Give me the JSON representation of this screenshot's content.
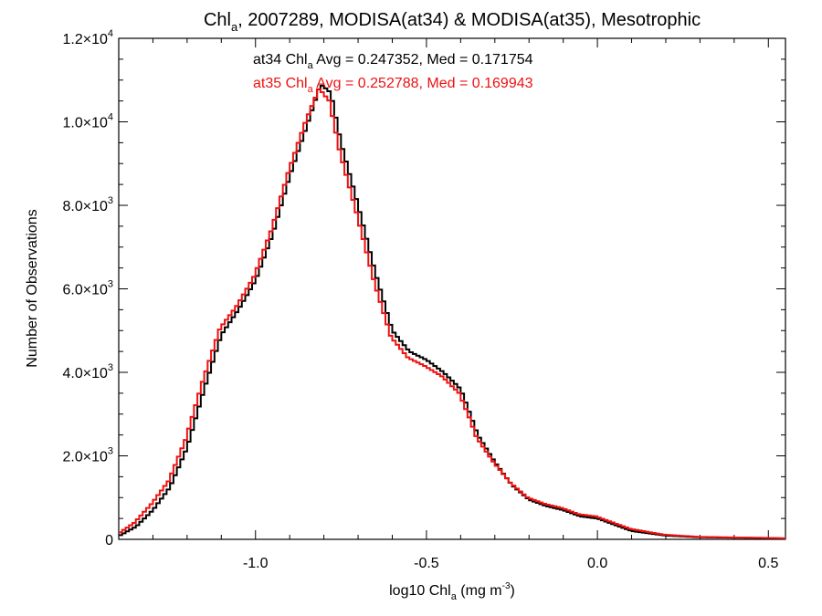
{
  "chart_data": {
    "type": "line",
    "title": {
      "main": "Chl",
      "sub": "a",
      "rest": ", 2007289, MODISA(at34) & MODISA(at35), Mesotrophic"
    },
    "xlabel": {
      "main": "log10 Chl",
      "sub": "a",
      "unit": " (mg m",
      "sup": "-3",
      "close": ")"
    },
    "ylabel": "Number of Observations",
    "xlim": [
      -1.4,
      0.55
    ],
    "ylim": [
      0,
      12000
    ],
    "x_ticks": [
      {
        "value": -1.0,
        "label": "-1.0"
      },
      {
        "value": -0.5,
        "label": "-0.5"
      },
      {
        "value": 0.0,
        "label": "0.0"
      },
      {
        "value": 0.5,
        "label": "0.5"
      }
    ],
    "y_ticks": [
      {
        "value": 0,
        "mant": "0",
        "exp": ""
      },
      {
        "value": 2000,
        "mant": "2.0×10",
        "exp": "3"
      },
      {
        "value": 4000,
        "mant": "4.0×10",
        "exp": "3"
      },
      {
        "value": 6000,
        "mant": "6.0×10",
        "exp": "3"
      },
      {
        "value": 8000,
        "mant": "8.0×10",
        "exp": "3"
      },
      {
        "value": 10000,
        "mant": "1.0×10",
        "exp": "4"
      },
      {
        "value": 12000,
        "mant": "1.2×10",
        "exp": "4"
      }
    ],
    "series": [
      {
        "name": "at34",
        "color": "#000000",
        "stats": {
          "prefix": "at34 Chl",
          "sub": "a",
          "text": " Avg = 0.247352, Med = 0.171754"
        },
        "x": [
          -1.4,
          -1.35,
          -1.3,
          -1.25,
          -1.2,
          -1.15,
          -1.1,
          -1.05,
          -1.0,
          -0.95,
          -0.9,
          -0.85,
          -0.81,
          -0.78,
          -0.75,
          -0.7,
          -0.65,
          -0.6,
          -0.55,
          -0.5,
          -0.45,
          -0.4,
          -0.37,
          -0.35,
          -0.3,
          -0.25,
          -0.2,
          -0.15,
          -0.1,
          -0.05,
          0.0,
          0.05,
          0.1,
          0.2,
          0.3,
          0.4,
          0.5,
          0.55
        ],
        "y": [
          80,
          300,
          700,
          1250,
          2200,
          3600,
          4900,
          5500,
          6200,
          7300,
          8700,
          9900,
          10900,
          10700,
          9500,
          8000,
          6400,
          5000,
          4500,
          4300,
          4000,
          3600,
          2950,
          2500,
          1850,
          1300,
          950,
          800,
          700,
          550,
          500,
          350,
          200,
          90,
          50,
          40,
          30,
          20
        ]
      },
      {
        "name": "at35",
        "color": "#ee1111",
        "stats": {
          "prefix": "at35 Chl",
          "sub": "a",
          "text": " Avg = 0.252788, Med = 0.169943"
        },
        "x": [
          -1.4,
          -1.35,
          -1.3,
          -1.25,
          -1.2,
          -1.15,
          -1.1,
          -1.05,
          -1.0,
          -0.95,
          -0.9,
          -0.85,
          -0.81,
          -0.78,
          -0.75,
          -0.7,
          -0.65,
          -0.6,
          -0.55,
          -0.5,
          -0.45,
          -0.4,
          -0.37,
          -0.35,
          -0.3,
          -0.25,
          -0.2,
          -0.15,
          -0.1,
          -0.05,
          0.0,
          0.05,
          0.1,
          0.2,
          0.3,
          0.4,
          0.5,
          0.55
        ],
        "y": [
          120,
          400,
          850,
          1400,
          2400,
          3800,
          5050,
          5600,
          6300,
          7400,
          8800,
          10000,
          10800,
          10500,
          9300,
          7800,
          6200,
          4850,
          4350,
          4150,
          3900,
          3500,
          2900,
          2450,
          1850,
          1350,
          1000,
          850,
          750,
          600,
          550,
          400,
          250,
          110,
          60,
          45,
          35,
          25
        ]
      }
    ]
  }
}
